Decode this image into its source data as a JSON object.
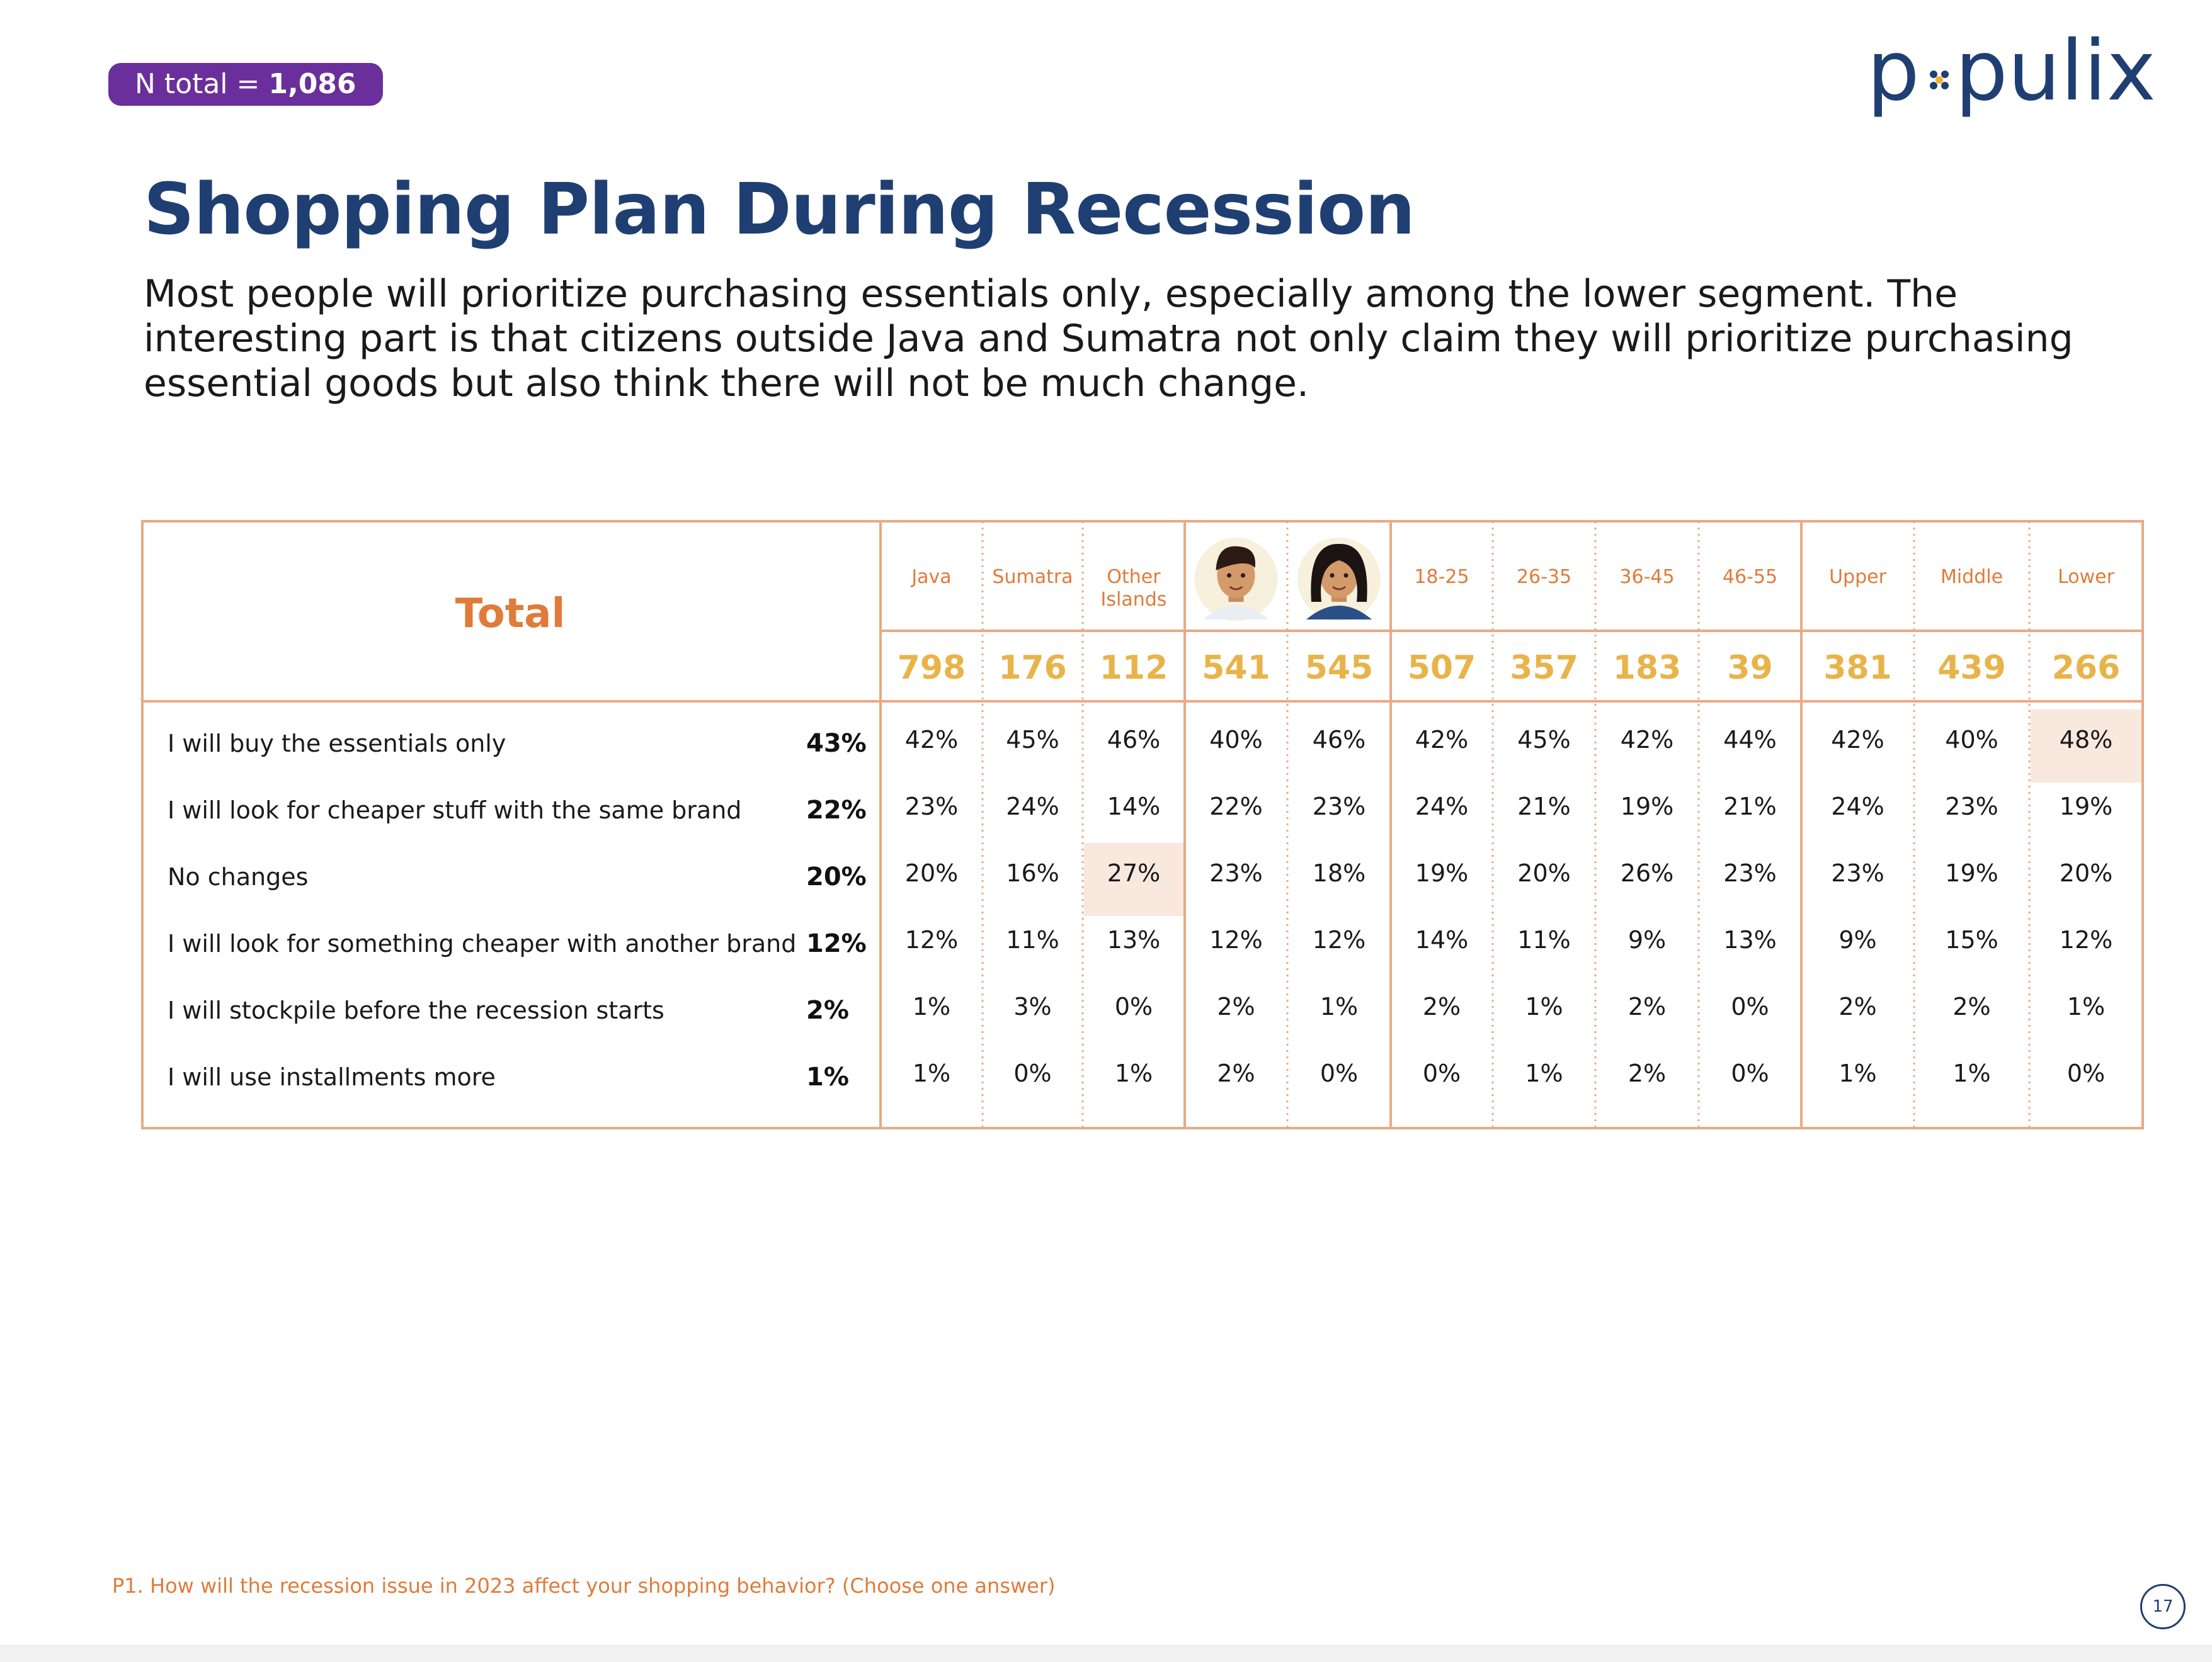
{
  "badge": {
    "label": "N total = ",
    "value": "1,086"
  },
  "logo": {
    "text_left": "p",
    "text_right": "pulix"
  },
  "title": "Shopping Plan During Recession",
  "subtitle": "Most people will prioritize purchasing essentials only, especially among the lower segment. The interesting part is that citizens outside Java and Sumatra not only claim they will prioritize purchasing essential goods but also think there will not be much change.",
  "footnote": "P1. How will the recession issue in 2023 affect your shopping behavior? (Choose one answer)",
  "page_number": "17",
  "colors": {
    "navy": "#1f3f73",
    "orange": "#e07b39",
    "gold": "#e8b44a",
    "badge": "#6a2f9a",
    "highlight": "#f8e8de"
  },
  "chart_data": {
    "type": "table",
    "total_label": "Total",
    "columns": [
      {
        "label": "Java",
        "n": "798",
        "group": "region"
      },
      {
        "label": "Sumatra",
        "n": "176",
        "group": "region"
      },
      {
        "label": "Other Islands",
        "n": "112",
        "group": "region"
      },
      {
        "label": "",
        "icon": "male-avatar-icon",
        "n": "541",
        "group": "gender"
      },
      {
        "label": "",
        "icon": "female-avatar-icon",
        "n": "545",
        "group": "gender"
      },
      {
        "label": "18-25",
        "n": "507",
        "group": "age"
      },
      {
        "label": "26-35",
        "n": "357",
        "group": "age"
      },
      {
        "label": "36-45",
        "n": "183",
        "group": "age"
      },
      {
        "label": "46-55",
        "n": "39",
        "group": "age"
      },
      {
        "label": "Upper",
        "n": "381",
        "group": "ses"
      },
      {
        "label": "Middle",
        "n": "439",
        "group": "ses"
      },
      {
        "label": "Lower",
        "n": "266",
        "group": "ses"
      }
    ],
    "rows": [
      {
        "label": "I will buy the essentials only",
        "total": "43%",
        "values": [
          "42%",
          "45%",
          "46%",
          "40%",
          "46%",
          "42%",
          "45%",
          "42%",
          "44%",
          "42%",
          "40%",
          "48%"
        ]
      },
      {
        "label": "I will look for cheaper stuff with the same brand",
        "total": "22%",
        "values": [
          "23%",
          "24%",
          "14%",
          "22%",
          "23%",
          "24%",
          "21%",
          "19%",
          "21%",
          "24%",
          "23%",
          "19%"
        ]
      },
      {
        "label": "No changes",
        "total": "20%",
        "values": [
          "20%",
          "16%",
          "27%",
          "23%",
          "18%",
          "19%",
          "20%",
          "26%",
          "23%",
          "23%",
          "19%",
          "20%"
        ]
      },
      {
        "label": "I will look for something cheaper with another brand",
        "total": "12%",
        "values": [
          "12%",
          "11%",
          "13%",
          "12%",
          "12%",
          "14%",
          "11%",
          "9%",
          "13%",
          "9%",
          "15%",
          "12%"
        ]
      },
      {
        "label": "I will stockpile before the recession starts",
        "total": "2%",
        "values": [
          "1%",
          "3%",
          "0%",
          "2%",
          "1%",
          "2%",
          "1%",
          "2%",
          "0%",
          "2%",
          "2%",
          "1%"
        ]
      },
      {
        "label": "I will use installments more",
        "total": "1%",
        "values": [
          "1%",
          "0%",
          "1%",
          "2%",
          "0%",
          "0%",
          "1%",
          "2%",
          "0%",
          "1%",
          "1%",
          "0%"
        ]
      }
    ],
    "highlighted_cells": [
      {
        "row": 0,
        "col": 11
      },
      {
        "row": 2,
        "col": 2
      }
    ]
  }
}
